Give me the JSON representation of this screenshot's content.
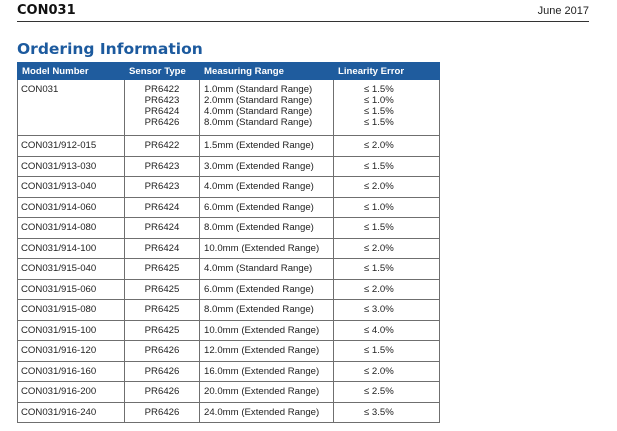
{
  "header": {
    "code": "CON031",
    "date": "June 2017"
  },
  "section_title": "Ordering Information",
  "table": {
    "headers": [
      "Model Number",
      "Sensor Type",
      "Measuring Range",
      "Linearity Error"
    ],
    "first_row": {
      "model": "CON031",
      "entries": [
        {
          "sensor": "PR6422",
          "range": "1.0mm (Standard Range)",
          "linearity": "≤ 1.5%"
        },
        {
          "sensor": "PR6423",
          "range": "2.0mm (Standard Range)",
          "linearity": "≤ 1.0%"
        },
        {
          "sensor": "PR6424",
          "range": "4.0mm (Standard Range)",
          "linearity": "≤ 1.5%"
        },
        {
          "sensor": "PR6426",
          "range": "8.0mm (Standard Range)",
          "linearity": "≤ 1.5%"
        }
      ]
    },
    "rows": [
      {
        "model": "CON031/912-015",
        "sensor": "PR6422",
        "range": "1.5mm (Extended Range)",
        "linearity": "≤ 2.0%"
      },
      {
        "model": "CON031/913-030",
        "sensor": "PR6423",
        "range": "3.0mm (Extended Range)",
        "linearity": "≤ 1.5%"
      },
      {
        "model": "CON031/913-040",
        "sensor": "PR6423",
        "range": "4.0mm (Extended Range)",
        "linearity": "≤ 2.0%"
      },
      {
        "model": "CON031/914-060",
        "sensor": "PR6424",
        "range": "6.0mm (Extended Range)",
        "linearity": "≤ 1.0%"
      },
      {
        "model": "CON031/914-080",
        "sensor": "PR6424",
        "range": "8.0mm (Extended Range)",
        "linearity": "≤ 1.5%"
      },
      {
        "model": "CON031/914-100",
        "sensor": "PR6424",
        "range": "10.0mm (Extended Range)",
        "linearity": "≤ 2.0%"
      },
      {
        "model": "CON031/915-040",
        "sensor": "PR6425",
        "range": "4.0mm (Standard Range)",
        "linearity": "≤ 1.5%"
      },
      {
        "model": "CON031/915-060",
        "sensor": "PR6425",
        "range": "6.0mm (Extended Range)",
        "linearity": "≤ 2.0%"
      },
      {
        "model": "CON031/915-080",
        "sensor": "PR6425",
        "range": "8.0mm (Extended Range)",
        "linearity": "≤ 3.0%"
      },
      {
        "model": "CON031/915-100",
        "sensor": "PR6425",
        "range": "10.0mm (Extended Range)",
        "linearity": "≤ 4.0%"
      },
      {
        "model": "CON031/916-120",
        "sensor": "PR6426",
        "range": "12.0mm (Extended Range)",
        "linearity": "≤ 1.5%"
      },
      {
        "model": "CON031/916-160",
        "sensor": "PR6426",
        "range": "16.0mm (Extended Range)",
        "linearity": "≤ 2.0%"
      },
      {
        "model": "CON031/916-200",
        "sensor": "PR6426",
        "range": "20.0mm (Extended Range)",
        "linearity": "≤ 2.5%"
      },
      {
        "model": "CON031/916-240",
        "sensor": "PR6426",
        "range": "24.0mm (Extended Range)",
        "linearity": "≤ 3.5%"
      }
    ]
  },
  "colors": {
    "accent": "#1f5c9e",
    "title": "#1c5a9e",
    "border": "#6f6f6f"
  }
}
